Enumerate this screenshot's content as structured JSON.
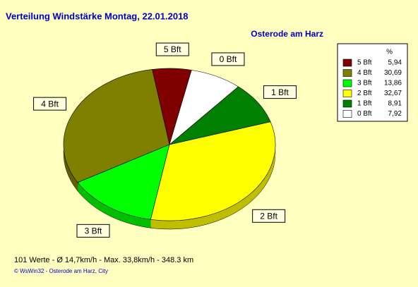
{
  "chart_data": {
    "type": "pie",
    "title": "Verteilung Windstärke  Montag, 22.01.2018",
    "subtitle": "Osterode am Harz",
    "categories": [
      "5 Bft",
      "4 Bft",
      "3 Bft",
      "2 Bft",
      "1 Bft",
      "0 Bft"
    ],
    "values": [
      5.94,
      30.69,
      13.86,
      32.67,
      8.91,
      7.92
    ],
    "value_labels": [
      "5,94",
      "30,69",
      "13,86",
      "32,67",
      "8,91",
      "7,92"
    ],
    "colors": [
      "#800000",
      "#808000",
      "#00ff00",
      "#ffff00",
      "#008000",
      "#ffffff"
    ],
    "legend_header": "%",
    "footer": "101 Werte   -   Ø 14,7km/h  -  Max. 33,8km/h   -   348.3 km",
    "credit": "© WsWin32  -  Osterode am Harz, City"
  }
}
